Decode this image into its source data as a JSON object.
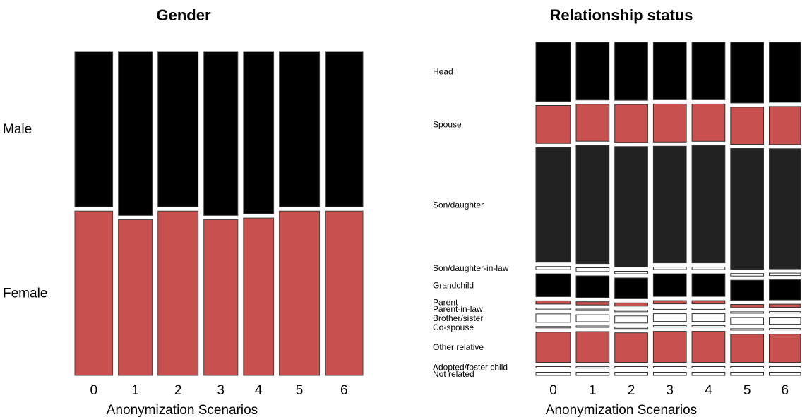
{
  "chart_data": [
    {
      "type": "bar",
      "subtype": "mosaic",
      "title": "Gender",
      "xlabel": "Anonymization Scenarios",
      "categories": [
        "0",
        "1",
        "2",
        "3",
        "4",
        "5",
        "6"
      ],
      "column_widths": [
        0.0825,
        0.074,
        0.0877,
        0.074,
        0.0659,
        0.0877,
        0.0822
      ],
      "series": [
        {
          "name": "Male",
          "color": "#000000",
          "values": [
            0.486,
            0.513,
            0.486,
            0.513,
            0.508,
            0.486,
            0.486
          ]
        },
        {
          "name": "Female",
          "color": "#c8504f",
          "values": [
            0.514,
            0.487,
            0.514,
            0.487,
            0.492,
            0.514,
            0.514
          ]
        }
      ]
    },
    {
      "type": "bar",
      "subtype": "mosaic",
      "title": "Relationship status",
      "xlabel": "Anonymization Scenarios",
      "categories": [
        "0",
        "1",
        "2",
        "3",
        "4",
        "5",
        "6"
      ],
      "column_widths": [
        0.0786,
        0.075,
        0.075,
        0.075,
        0.075,
        0.075,
        0.0714
      ],
      "series": [
        {
          "name": "Head",
          "color": "#000000",
          "values": [
            0.168,
            0.165,
            0.165,
            0.163,
            0.163,
            0.173,
            0.17
          ]
        },
        {
          "name": "Spouse",
          "color": "#c8504f",
          "values": [
            0.108,
            0.106,
            0.108,
            0.108,
            0.106,
            0.106,
            0.108
          ]
        },
        {
          "name": "Son/daughter",
          "color": "#222222",
          "values": [
            0.327,
            0.338,
            0.343,
            0.331,
            0.333,
            0.345,
            0.341
          ]
        },
        {
          "name": "Son/daughter-in-law",
          "color": "#ffffff",
          "values": [
            0.009,
            0.011,
            0.007,
            0.007,
            0.007,
            0.007,
            0.007
          ]
        },
        {
          "name": "Grandchild",
          "color": "#000000",
          "values": [
            0.065,
            0.062,
            0.059,
            0.064,
            0.064,
            0.057,
            0.057
          ]
        },
        {
          "name": "Parent",
          "color": "#c8504f",
          "values": [
            0.009,
            0.009,
            0.009,
            0.009,
            0.009,
            0.009,
            0.009
          ]
        },
        {
          "name": "Parent-in-law",
          "color": "#ffffff",
          "values": [
            0.004,
            0.004,
            0.004,
            0.004,
            0.004,
            0.004,
            0.004
          ]
        },
        {
          "name": "Brother/sister",
          "color": "#ffffff",
          "values": [
            0.024,
            0.02,
            0.02,
            0.022,
            0.022,
            0.02,
            0.02
          ]
        },
        {
          "name": "Co-spouse",
          "color": "#ffffff",
          "values": [
            0.004,
            0.004,
            0.004,
            0.004,
            0.004,
            0.004,
            0.004
          ]
        },
        {
          "name": "Other relative",
          "color": "#c8504f",
          "values": [
            0.086,
            0.088,
            0.084,
            0.088,
            0.088,
            0.08,
            0.08
          ]
        },
        {
          "name": "Adopted/foster child",
          "color": "#ffffff",
          "values": [
            0.004,
            0.004,
            0.004,
            0.004,
            0.004,
            0.004,
            0.004
          ]
        },
        {
          "name": "Not related",
          "color": "#ffffff",
          "values": [
            0.009,
            0.009,
            0.009,
            0.009,
            0.009,
            0.009,
            0.009
          ]
        }
      ]
    }
  ]
}
